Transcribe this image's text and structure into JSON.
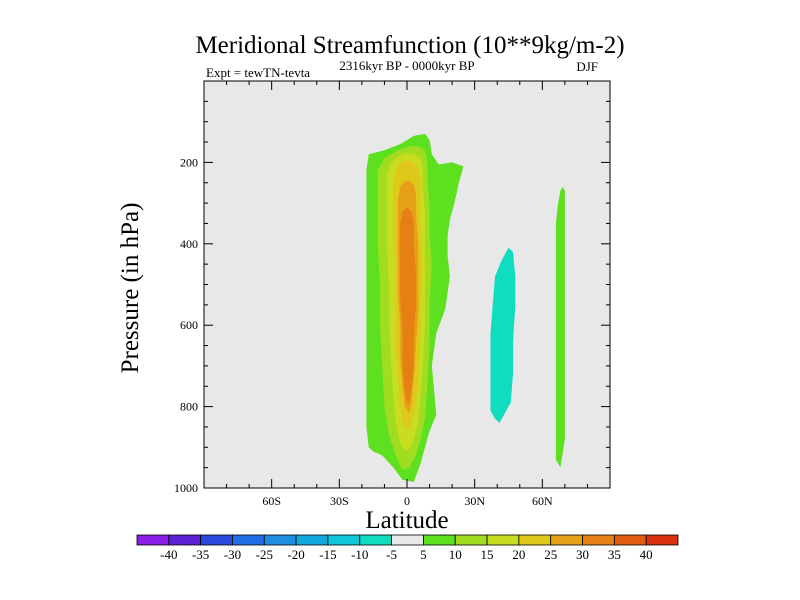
{
  "chart_data": {
    "type": "contour",
    "title": "Meridional Streamfunction (10**9kg/m-2)",
    "subtitle_left": "Expt = tewTN-tevta",
    "subtitle_center": "2316kyr BP - 0000kyr BP",
    "subtitle_right": "DJF",
    "xlabel": "Latitude",
    "ylabel": "Pressure (in hPa)",
    "xlim": [
      -90,
      90
    ],
    "ylim": [
      0,
      1000
    ],
    "x_ticks": [
      {
        "value": -60,
        "label": "60S"
      },
      {
        "value": -30,
        "label": "30S"
      },
      {
        "value": 0,
        "label": "0"
      },
      {
        "value": 30,
        "label": "30N"
      },
      {
        "value": 60,
        "label": "60N"
      }
    ],
    "y_ticks": [
      {
        "value": 200,
        "label": "200"
      },
      {
        "value": 400,
        "label": "400"
      },
      {
        "value": 600,
        "label": "600"
      },
      {
        "value": 800,
        "label": "800"
      },
      {
        "value": 1000,
        "label": "1000"
      }
    ],
    "background_color": "#e8e8e8",
    "colorbar": {
      "labels": [
        "-40",
        "-35",
        "-30",
        "-25",
        "-20",
        "-15",
        "-10",
        "-5",
        "5",
        "10",
        "15",
        "20",
        "25",
        "30",
        "35",
        "40"
      ],
      "colors": [
        "#8a1ee6",
        "#5c22d6",
        "#2b48dc",
        "#1e6ee6",
        "#1e8ee0",
        "#10a8dc",
        "#10c8d8",
        "#10dcc0",
        "#e8e8e8",
        "#5ce020",
        "#a0dc20",
        "#c8dc20",
        "#e0c81a",
        "#e6a018",
        "#e68014",
        "#e05c10",
        "#d83010"
      ]
    },
    "contours": [
      {
        "level": "5 to 10",
        "color": "#5ce020",
        "points": [
          [
            -17,
            180
          ],
          [
            -10,
            170
          ],
          [
            -3,
            155
          ],
          [
            3,
            135
          ],
          [
            8,
            130
          ],
          [
            10,
            145
          ],
          [
            11,
            180
          ],
          [
            14,
            205
          ],
          [
            20,
            200
          ],
          [
            25,
            210
          ],
          [
            23,
            250
          ],
          [
            21,
            300
          ],
          [
            19,
            340
          ],
          [
            18,
            380
          ],
          [
            18,
            430
          ],
          [
            19,
            480
          ],
          [
            17,
            560
          ],
          [
            13,
            620
          ],
          [
            11,
            700
          ],
          [
            12,
            760
          ],
          [
            13,
            820
          ],
          [
            10,
            860
          ],
          [
            8,
            900
          ],
          [
            6,
            940
          ],
          [
            3,
            985
          ],
          [
            -2,
            980
          ],
          [
            -6,
            950
          ],
          [
            -11,
            920
          ],
          [
            -15,
            910
          ],
          [
            -17,
            900
          ],
          [
            -18,
            850
          ],
          [
            -18,
            780
          ],
          [
            -18,
            700
          ],
          [
            -18,
            600
          ],
          [
            -18,
            500
          ],
          [
            -18,
            400
          ],
          [
            -18,
            300
          ],
          [
            -18,
            220
          ]
        ]
      },
      {
        "level": "10 to 15",
        "color": "#a0dc20",
        "points": [
          [
            -13,
            220
          ],
          [
            -10,
            190
          ],
          [
            -4,
            170
          ],
          [
            1,
            160
          ],
          [
            5,
            160
          ],
          [
            8,
            170
          ],
          [
            9,
            200
          ],
          [
            9,
            240
          ],
          [
            10,
            300
          ],
          [
            10,
            380
          ],
          [
            11,
            450
          ],
          [
            10,
            550
          ],
          [
            10,
            650
          ],
          [
            9,
            750
          ],
          [
            8,
            830
          ],
          [
            6,
            880
          ],
          [
            4,
            920
          ],
          [
            1,
            950
          ],
          [
            -2,
            955
          ],
          [
            -5,
            920
          ],
          [
            -8,
            870
          ],
          [
            -10,
            800
          ],
          [
            -11,
            700
          ],
          [
            -12,
            600
          ],
          [
            -12,
            500
          ],
          [
            -13,
            400
          ],
          [
            -13,
            300
          ]
        ]
      },
      {
        "level": "15 to 20",
        "color": "#c8dc20",
        "points": [
          [
            -9,
            230
          ],
          [
            -7,
            200
          ],
          [
            -4,
            185
          ],
          [
            -1,
            178
          ],
          [
            3,
            180
          ],
          [
            6,
            190
          ],
          [
            7,
            220
          ],
          [
            7,
            260
          ],
          [
            8,
            320
          ],
          [
            8,
            400
          ],
          [
            8,
            500
          ],
          [
            8,
            600
          ],
          [
            7,
            700
          ],
          [
            6,
            780
          ],
          [
            5,
            840
          ],
          [
            3,
            880
          ],
          [
            1,
            905
          ],
          [
            -1,
            910
          ],
          [
            -3,
            890
          ],
          [
            -5,
            840
          ],
          [
            -6,
            780
          ],
          [
            -7,
            700
          ],
          [
            -8,
            600
          ],
          [
            -8,
            500
          ],
          [
            -9,
            400
          ],
          [
            -9,
            300
          ]
        ]
      },
      {
        "level": "20 to 25",
        "color": "#e0c81a",
        "points": [
          [
            -6,
            250
          ],
          [
            -5,
            220
          ],
          [
            -3,
            200
          ],
          [
            0,
            195
          ],
          [
            3,
            200
          ],
          [
            5,
            215
          ],
          [
            6,
            250
          ],
          [
            6,
            300
          ],
          [
            6,
            380
          ],
          [
            7,
            460
          ],
          [
            6,
            550
          ],
          [
            6,
            640
          ],
          [
            5,
            720
          ],
          [
            4,
            790
          ],
          [
            2,
            840
          ],
          [
            0,
            860
          ],
          [
            -2,
            840
          ],
          [
            -3,
            790
          ],
          [
            -4,
            720
          ],
          [
            -5,
            640
          ],
          [
            -5,
            550
          ],
          [
            -5,
            460
          ],
          [
            -6,
            380
          ],
          [
            -6,
            300
          ]
        ]
      },
      {
        "level": "25 to 30",
        "color": "#e6a018",
        "points": [
          [
            -4,
            290
          ],
          [
            -3,
            260
          ],
          [
            -1,
            245
          ],
          [
            1,
            245
          ],
          [
            3,
            255
          ],
          [
            4,
            280
          ],
          [
            4,
            330
          ],
          [
            5,
            400
          ],
          [
            5,
            480
          ],
          [
            5,
            560
          ],
          [
            4,
            650
          ],
          [
            3,
            730
          ],
          [
            2,
            790
          ],
          [
            1,
            815
          ],
          [
            -1,
            800
          ],
          [
            -2,
            750
          ],
          [
            -3,
            680
          ],
          [
            -3,
            600
          ],
          [
            -4,
            520
          ],
          [
            -4,
            440
          ],
          [
            -4,
            360
          ]
        ]
      },
      {
        "level": "30 to 35",
        "color": "#e68014",
        "points": [
          [
            -3,
            350
          ],
          [
            -2,
            320
          ],
          [
            0,
            310
          ],
          [
            2,
            320
          ],
          [
            3,
            350
          ],
          [
            3,
            400
          ],
          [
            4,
            470
          ],
          [
            4,
            550
          ],
          [
            3,
            630
          ],
          [
            3,
            700
          ],
          [
            2,
            760
          ],
          [
            1,
            790
          ],
          [
            0,
            790
          ],
          [
            -1,
            760
          ],
          [
            -2,
            700
          ],
          [
            -2,
            620
          ],
          [
            -3,
            540
          ],
          [
            -3,
            460
          ],
          [
            -3,
            400
          ]
        ]
      },
      {
        "level": "-10 to -5",
        "color": "#10dcc0",
        "points": [
          [
            39,
            480
          ],
          [
            42,
            440
          ],
          [
            45,
            410
          ],
          [
            47,
            420
          ],
          [
            48,
            480
          ],
          [
            48,
            550
          ],
          [
            47,
            640
          ],
          [
            47,
            720
          ],
          [
            46,
            790
          ],
          [
            43,
            820
          ],
          [
            41,
            840
          ],
          [
            39,
            830
          ],
          [
            37,
            810
          ],
          [
            37,
            720
          ],
          [
            37,
            620
          ],
          [
            38,
            550
          ]
        ]
      },
      {
        "level": "5 to 10",
        "color": "#5ce020",
        "points": [
          [
            67,
            300
          ],
          [
            68,
            270
          ],
          [
            69,
            260
          ],
          [
            70,
            270
          ],
          [
            70,
            320
          ],
          [
            70,
            400
          ],
          [
            70,
            500
          ],
          [
            70,
            600
          ],
          [
            70,
            700
          ],
          [
            70,
            800
          ],
          [
            70,
            880
          ],
          [
            68,
            950
          ],
          [
            66,
            930
          ],
          [
            66,
            850
          ],
          [
            66,
            750
          ],
          [
            66,
            650
          ],
          [
            66,
            550
          ],
          [
            66,
            450
          ],
          [
            66,
            350
          ]
        ]
      }
    ]
  }
}
